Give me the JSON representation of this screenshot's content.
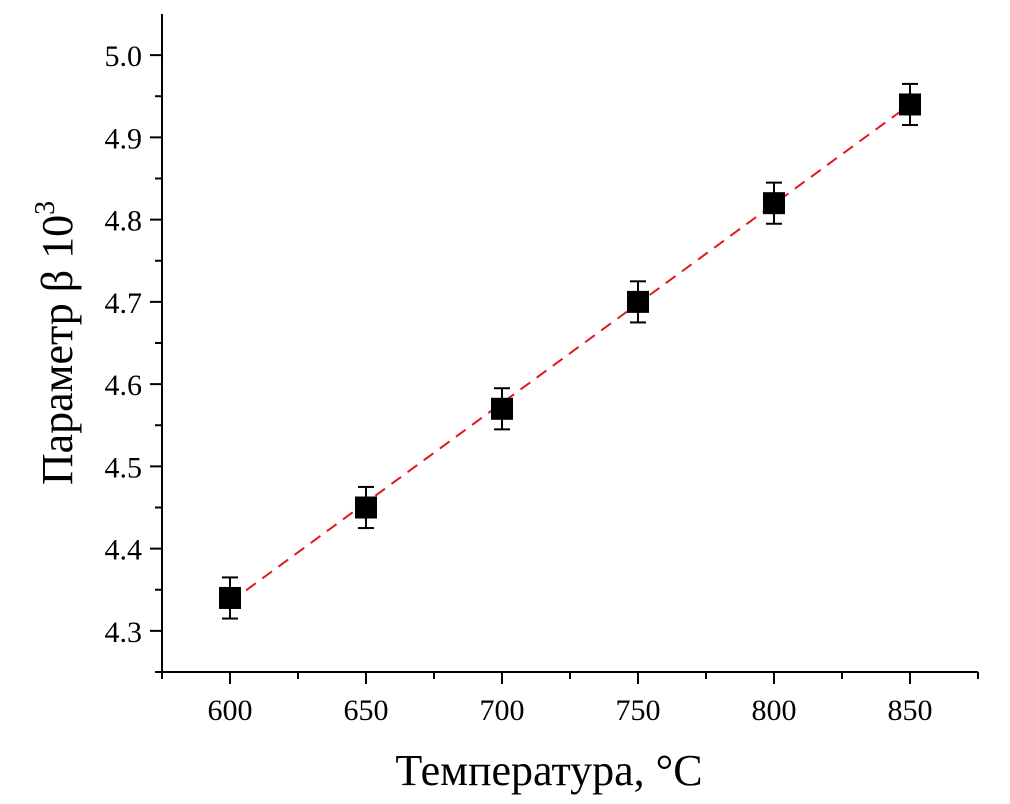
{
  "chart_data": {
    "type": "scatter",
    "xlabel": "Температура, °C",
    "ylabel_text": "Параметр β 10",
    "ylabel_sup": "3",
    "xlim": [
      575,
      875
    ],
    "ylim": [
      4.25,
      5.05
    ],
    "x_ticks": [
      600,
      650,
      700,
      750,
      800,
      850
    ],
    "y_ticks": [
      4.3,
      4.4,
      4.5,
      4.6,
      4.7,
      4.8,
      4.9,
      5.0
    ],
    "x_tick_labels": [
      "600",
      "650",
      "700",
      "750",
      "800",
      "850"
    ],
    "y_tick_labels": [
      "4.3",
      "4.4",
      "4.5",
      "4.6",
      "4.7",
      "4.8",
      "4.9",
      "5.0"
    ],
    "series": [
      {
        "x": [
          600,
          650,
          700,
          750,
          800,
          850
        ],
        "y": [
          4.34,
          4.45,
          4.57,
          4.7,
          4.82,
          4.94
        ],
        "error": [
          0.025,
          0.025,
          0.025,
          0.025,
          0.025,
          0.025
        ],
        "marker": "square",
        "color": "#000000"
      }
    ],
    "fit_line": {
      "x": [
        600,
        850
      ],
      "y": [
        4.335,
        4.94
      ],
      "style": "dashed",
      "color": "#e0191f"
    },
    "grid": false,
    "legend": "none"
  }
}
